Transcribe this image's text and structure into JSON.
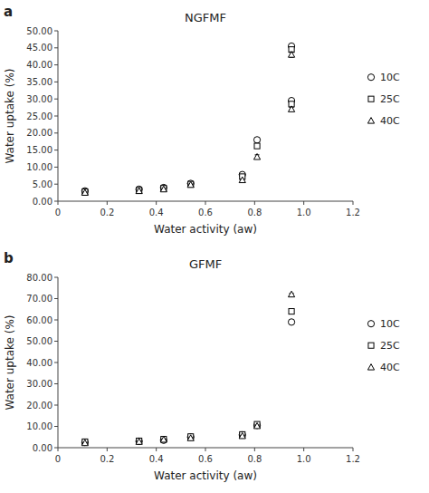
{
  "chart_data": [
    {
      "type": "scatter",
      "title": "NGFMF",
      "x_label": "Water activity (aw)",
      "y_label": "Water uptake (%)",
      "annotations": [
        {
          "text": "a"
        }
      ],
      "color": "#000000",
      "grid": false,
      "legend": "right",
      "xlim": [
        0,
        1.2
      ],
      "xticks": [
        0,
        0.2,
        0.4,
        0.6,
        0.8,
        {
          "value": 1.0,
          "label": "1.0"
        },
        1.2
      ],
      "ylim": [
        0,
        50
      ],
      "yticks": [
        {
          "value": 0,
          "label": "0.00"
        },
        {
          "value": 5.0,
          "label": "5.00"
        },
        {
          "value": 10.0,
          "label": "10.00"
        },
        {
          "value": 15.0,
          "label": "15.00"
        },
        {
          "value": 20.0,
          "label": "20.00"
        },
        {
          "value": 25.0,
          "label": "25.00"
        },
        {
          "value": 30.0,
          "label": "30.00"
        },
        {
          "value": 35.0,
          "label": "35.00"
        },
        {
          "value": 40.0,
          "label": "40.00"
        },
        {
          "value": 45.0,
          "label": "45.00"
        },
        {
          "value": 50.0,
          "label": "50.00"
        }
      ],
      "series": [
        {
          "name": "10C",
          "marker": "circle",
          "x": [
            0.11,
            0.33,
            0.43,
            0.54,
            0.75,
            0.81,
            0.95,
            0.95
          ],
          "values": [
            3.0,
            3.5,
            4.0,
            5.2,
            7.8,
            18.0,
            29.5,
            45.5
          ],
          "errors": [
            0.15,
            0.15,
            0.15,
            0.2,
            0.3,
            0.6,
            0.5,
            0.5
          ]
        },
        {
          "name": "25C",
          "marker": "square",
          "x": [
            0.11,
            0.33,
            0.43,
            0.54,
            0.75,
            0.81,
            0.95,
            0.95
          ],
          "values": [
            2.8,
            3.2,
            3.8,
            5.0,
            7.2,
            16.2,
            28.5,
            44.5
          ],
          "errors": [
            0.15,
            0.15,
            0.15,
            0.2,
            0.3,
            0.6,
            0.5,
            0.5
          ]
        },
        {
          "name": "40C",
          "marker": "triangle",
          "x": [
            0.11,
            0.33,
            0.43,
            0.54,
            0.75,
            0.81,
            0.95,
            0.95
          ],
          "values": [
            2.5,
            3.0,
            3.5,
            4.8,
            6.2,
            13.0,
            27.0,
            43.0
          ],
          "errors": [
            0.15,
            0.15,
            0.15,
            0.2,
            0.3,
            0.6,
            0.5,
            0.8
          ]
        }
      ]
    },
    {
      "type": "scatter",
      "title": "GFMF",
      "x_label": "Water activity (aw)",
      "y_label": "Water uptake (%)",
      "annotations": [
        {
          "text": "b"
        }
      ],
      "color": "#000000",
      "grid": false,
      "legend": "right",
      "xlim": [
        0,
        1.2
      ],
      "xticks": [
        0,
        0.2,
        0.4,
        0.6,
        0.8,
        {
          "value": 1.0,
          "label": "1.0"
        },
        1.2
      ],
      "ylim": [
        0,
        80
      ],
      "yticks": [
        {
          "value": 0,
          "label": "0.00"
        },
        {
          "value": 10.0,
          "label": "10.00"
        },
        {
          "value": 20.0,
          "label": "20.00"
        },
        {
          "value": 30.0,
          "label": "30.00"
        },
        {
          "value": 40.0,
          "label": "40.00"
        },
        {
          "value": 50.0,
          "label": "50.00"
        },
        {
          "value": 60.0,
          "label": "60.00"
        },
        {
          "value": 70.0,
          "label": "70.00"
        },
        {
          "value": 80.0,
          "label": "80.00"
        }
      ],
      "series": [
        {
          "name": "10C",
          "marker": "circle",
          "x": [
            0.11,
            0.33,
            0.43,
            0.54,
            0.75,
            0.81,
            0.95
          ],
          "values": [
            2.5,
            3.0,
            3.5,
            5.0,
            6.0,
            10.5,
            59.0
          ],
          "errors": [
            0.15,
            0.15,
            0.15,
            0.2,
            0.2,
            0.4,
            0.5
          ]
        },
        {
          "name": "25C",
          "marker": "square",
          "x": [
            0.11,
            0.33,
            0.43,
            0.54,
            0.75,
            0.81,
            0.95
          ],
          "values": [
            2.8,
            3.2,
            4.0,
            5.2,
            6.2,
            11.0,
            64.0
          ],
          "errors": [
            0.15,
            0.15,
            0.15,
            0.2,
            0.2,
            0.4,
            0.5
          ]
        },
        {
          "name": "40C",
          "marker": "triangle",
          "x": [
            0.11,
            0.33,
            0.43,
            0.54,
            0.75,
            0.81,
            0.95
          ],
          "values": [
            2.2,
            2.8,
            3.8,
            4.5,
            5.5,
            10.2,
            72.0
          ],
          "errors": [
            0.15,
            0.15,
            0.15,
            0.2,
            0.2,
            0.4,
            0.5
          ]
        }
      ]
    }
  ]
}
